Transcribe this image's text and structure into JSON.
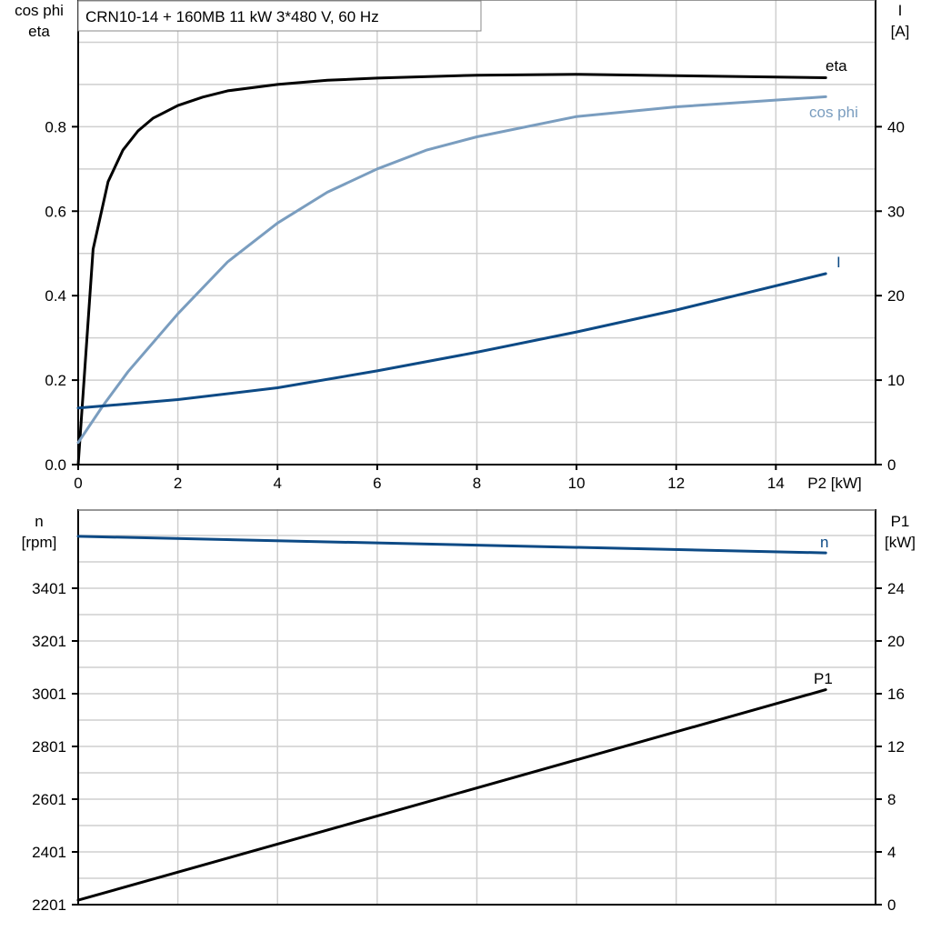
{
  "chart_data": [
    {
      "type": "line",
      "title": "CRN10-14 + 160MB   11 kW   3*480 V, 60 Hz",
      "xlabel": "P2 [kW]",
      "ylabel_left": [
        "cos phi",
        "eta"
      ],
      "ylabel_right": [
        "I",
        "[A]"
      ],
      "xlim": [
        0,
        16
      ],
      "ylim_left": [
        0,
        1.1
      ],
      "ylim_right": [
        0,
        55
      ],
      "x_ticks": [
        0,
        2,
        4,
        6,
        8,
        10,
        12,
        14
      ],
      "x_tick_labels": [
        "0",
        "2",
        "4",
        "6",
        "8",
        "10",
        "12",
        "14"
      ],
      "y_left_ticks": [
        0,
        0.2,
        0.4,
        0.6,
        0.8
      ],
      "y_left_tick_labels": [
        "0.0",
        "0.2",
        "0.4",
        "0.6",
        "0.8"
      ],
      "y_right_ticks": [
        0,
        10,
        20,
        30,
        40
      ],
      "y_right_tick_labels": [
        "0",
        "10",
        "20",
        "30",
        "40"
      ],
      "grid": true,
      "series": [
        {
          "name": "eta",
          "axis": "left",
          "color": "#000000",
          "x": [
            0,
            0.3,
            0.6,
            0.9,
            1.2,
            1.5,
            2,
            2.5,
            3,
            4,
            5,
            6,
            8,
            10,
            12,
            15
          ],
          "y": [
            0,
            0.51,
            0.67,
            0.745,
            0.79,
            0.82,
            0.85,
            0.87,
            0.885,
            0.9,
            0.91,
            0.915,
            0.922,
            0.924,
            0.921,
            0.916
          ]
        },
        {
          "name": "cos phi",
          "axis": "left",
          "color": "#7a9dbf",
          "x": [
            0,
            0.5,
            1,
            2,
            3,
            4,
            5,
            6,
            7,
            8,
            10,
            12,
            15
          ],
          "y": [
            0.052,
            0.14,
            0.22,
            0.357,
            0.48,
            0.572,
            0.645,
            0.7,
            0.745,
            0.776,
            0.824,
            0.847,
            0.871
          ]
        },
        {
          "name": "I",
          "axis": "right",
          "color": "#0d4a85",
          "x": [
            0,
            2,
            4,
            6,
            8,
            10,
            12,
            15
          ],
          "y": [
            6.7,
            7.7,
            9.1,
            11.1,
            13.3,
            15.7,
            18.3,
            22.6
          ]
        }
      ]
    },
    {
      "type": "line",
      "ylabel_left": [
        "n",
        "[rpm]"
      ],
      "ylabel_right": [
        "P1",
        "[kW]"
      ],
      "xlim": [
        0,
        16
      ],
      "ylim_left": [
        2201,
        3701
      ],
      "ylim_right": [
        0,
        30
      ],
      "y_left_ticks": [
        2201,
        2401,
        2601,
        2801,
        3001,
        3201,
        3401
      ],
      "y_left_tick_labels": [
        "2201",
        "2401",
        "2601",
        "2801",
        "3001",
        "3201",
        "3401"
      ],
      "y_right_ticks": [
        0,
        4,
        8,
        12,
        16,
        20,
        24
      ],
      "y_right_tick_labels": [
        "0",
        "4",
        "8",
        "12",
        "16",
        "20",
        "24"
      ],
      "grid": true,
      "series": [
        {
          "name": "n",
          "axis": "left",
          "color": "#0d4a85",
          "x": [
            0,
            15
          ],
          "y": [
            3598,
            3535
          ]
        },
        {
          "name": "P1",
          "axis": "right",
          "color": "#000000",
          "x": [
            0,
            15
          ],
          "y": [
            0.34,
            16.3
          ]
        }
      ]
    }
  ]
}
